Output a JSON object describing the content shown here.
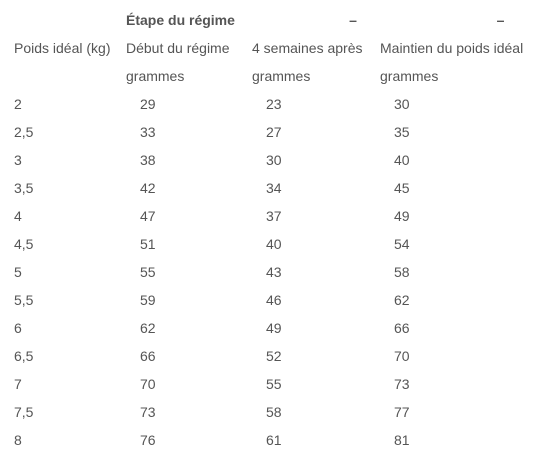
{
  "table": {
    "stage_header": "Étape du régime",
    "dash_1": "–",
    "dash_2": "–",
    "columns": [
      "Poids idéal (kg)",
      "Début du régime",
      "4 semaines après",
      "Maintien du poids idéal"
    ],
    "units": [
      "",
      "grammes",
      "grammes",
      "grammes"
    ],
    "rows": [
      [
        "2",
        "29",
        "23",
        "30"
      ],
      [
        "2,5",
        "33",
        "27",
        "35"
      ],
      [
        "3",
        "38",
        "30",
        "40"
      ],
      [
        "3,5",
        "42",
        "34",
        "45"
      ],
      [
        "4",
        "47",
        "37",
        "49"
      ],
      [
        "4,5",
        "51",
        "40",
        "54"
      ],
      [
        "5",
        "55",
        "43",
        "58"
      ],
      [
        "5,5",
        "59",
        "46",
        "62"
      ],
      [
        "6",
        "62",
        "49",
        "66"
      ],
      [
        "6,5",
        "66",
        "52",
        "70"
      ],
      [
        "7",
        "70",
        "55",
        "73"
      ],
      [
        "7,5",
        "73",
        "58",
        "77"
      ],
      [
        "8",
        "76",
        "61",
        "81"
      ]
    ]
  }
}
